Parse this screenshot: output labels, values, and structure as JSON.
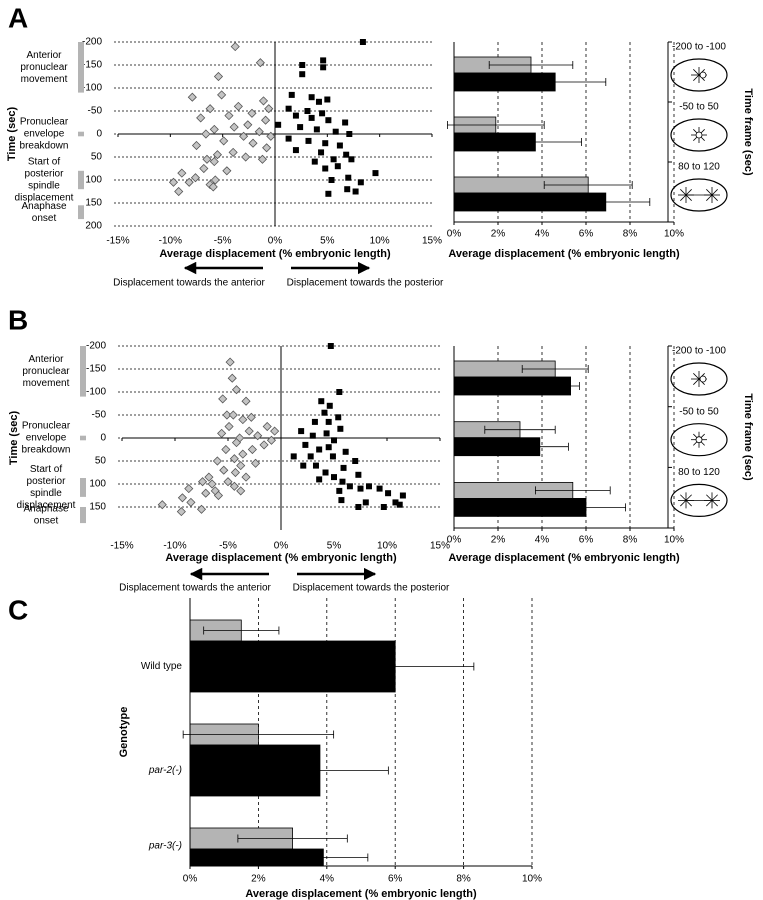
{
  "chart_data": [
    {
      "panel": "A",
      "type": "scatter",
      "xlabel": "Average displacement (% embryonic length)",
      "ylabel": "Time (sec)",
      "xlim": [
        -15,
        15
      ],
      "xticks": [
        {
          "value": -15,
          "label": "-15%"
        },
        {
          "value": -10,
          "label": "-10%"
        },
        {
          "value": -5,
          "label": "-5%"
        },
        {
          "value": 0,
          "label": "0%"
        },
        {
          "value": 5,
          "label": "5%"
        },
        {
          "value": 10,
          "label": "10%"
        },
        {
          "value": 15,
          "label": "15%"
        }
      ],
      "ylim": [
        -200,
        200
      ],
      "yticks": [
        -200,
        -150,
        -100,
        -50,
        0,
        50,
        100,
        150,
        200
      ],
      "grid": true,
      "series": [
        {
          "marker": "diamond",
          "color": "#c4c4c4",
          "x": [
            -3.8,
            -1.4,
            -5.4,
            -7.9,
            -5.1,
            -1.1,
            -3.5,
            -6.2,
            -0.6,
            -2.2,
            -4.4,
            -7.1,
            -0.9,
            -2.6,
            -3.9,
            -5.8,
            -1.5,
            -6.6,
            -3.0,
            -0.4,
            -4.9,
            -2.1,
            -7.5,
            -0.8,
            -4.0,
            -5.5,
            -2.8,
            -6.5,
            -5.8,
            -1.2,
            -6.8,
            -4.6,
            -8.9,
            -7.6,
            -5.7,
            -9.7,
            -8.2,
            -6.2,
            -9.2,
            -5.9
          ],
          "values": [
            -190,
            -155,
            -125,
            -80,
            -85,
            -72,
            -60,
            -55,
            -55,
            -45,
            -40,
            -35,
            -30,
            -20,
            -15,
            -10,
            -5,
            0,
            5,
            5,
            15,
            20,
            25,
            30,
            40,
            45,
            50,
            55,
            60,
            55,
            75,
            80,
            85,
            95,
            100,
            105,
            105,
            110,
            125,
            115
          ]
        },
        {
          "marker": "square",
          "color": "#000000",
          "x": [
            8.4,
            2.6,
            4.6,
            4.6,
            2.6,
            1.6,
            3.5,
            5.0,
            4.2,
            1.3,
            3.1,
            4.5,
            2.0,
            3.5,
            5.1,
            6.7,
            0.3,
            2.4,
            4.0,
            5.8,
            7.1,
            1.3,
            3.2,
            4.8,
            6.2,
            2.0,
            4.4,
            6.8,
            5.6,
            7.3,
            3.8,
            6.0,
            4.8,
            9.6,
            7.0,
            5.4,
            8.2,
            6.9,
            5.1,
            7.7
          ],
          "values": [
            -200,
            -150,
            -160,
            -145,
            -130,
            -85,
            -80,
            -75,
            -70,
            -55,
            -50,
            -45,
            -40,
            -35,
            -30,
            -25,
            -20,
            -15,
            -10,
            -5,
            0,
            10,
            15,
            20,
            25,
            35,
            40,
            45,
            55,
            55,
            60,
            70,
            75,
            85,
            95,
            100,
            105,
            120,
            130,
            125
          ]
        }
      ],
      "stages": [
        {
          "lines": [
            "Anterior",
            "pronuclear",
            "movement"
          ],
          "range": [
            -200,
            -90
          ]
        },
        {
          "lines": [
            "Pronuclear",
            "envelope",
            "breakdown"
          ],
          "range": [
            -5,
            5
          ]
        },
        {
          "lines": [
            "Start of",
            "posterior",
            "spindle",
            "displacement"
          ],
          "range": [
            80,
            120
          ]
        },
        {
          "lines": [
            "Anaphase",
            "onset"
          ],
          "range": [
            155,
            185
          ]
        }
      ],
      "arrows": [
        "Displacement towards the anterior",
        "Displacement towards the posterior"
      ]
    },
    {
      "type": "barh",
      "xlabel": "Average displacement (% embryonic length)",
      "ylabel": "Time frame (sec)",
      "categories": [
        "-200 to -100",
        "-50 to 50",
        "80 to 120"
      ],
      "xlim": [
        0,
        10
      ],
      "xticks": [
        {
          "value": 0,
          "label": "0%"
        },
        {
          "value": 2,
          "label": "2%"
        },
        {
          "value": 4,
          "label": "4%"
        },
        {
          "value": 6,
          "label": "6%"
        },
        {
          "value": 8,
          "label": "8%"
        },
        {
          "value": 10,
          "label": "10%"
        }
      ],
      "grid": true,
      "series": [
        {
          "color": "#b4b4b4",
          "values": [
            3.5,
            1.9,
            6.1
          ],
          "errors": [
            1.9,
            2.2,
            2.0
          ]
        },
        {
          "color": "#000000",
          "values": [
            4.6,
            3.7,
            6.9
          ],
          "errors": [
            2.3,
            2.1,
            2.0
          ]
        }
      ]
    },
    {
      "panel": "B",
      "type": "scatter",
      "xlabel": "Average displacement (% embryonic length)",
      "ylabel": "Time (sec)",
      "xlim": [
        -15,
        15
      ],
      "xticks": [
        {
          "value": -15,
          "label": "-15%"
        },
        {
          "value": -10,
          "label": "-10%"
        },
        {
          "value": -5,
          "label": "-5%"
        },
        {
          "value": 0,
          "label": "0%"
        },
        {
          "value": 5,
          "label": "5%"
        },
        {
          "value": 10,
          "label": "10%"
        },
        {
          "value": 15,
          "label": "15%"
        }
      ],
      "ylim": [
        -200,
        200
      ],
      "yticks": [
        -200,
        -150,
        -100,
        -50,
        0,
        50,
        100,
        150
      ],
      "grid": true,
      "series": [
        {
          "marker": "diamond",
          "color": "#c4c4c4",
          "x": [
            -4.8,
            -4.6,
            -4.2,
            -5.5,
            -3.3,
            -5.1,
            -4.5,
            -2.8,
            -3.6,
            -4.9,
            -1.3,
            -3.0,
            -5.6,
            -0.6,
            -2.2,
            -3.9,
            -0.9,
            -4.2,
            -1.6,
            -5.2,
            -2.7,
            -3.6,
            -4.4,
            -6.0,
            -2.4,
            -3.8,
            -5.4,
            -4.3,
            -6.8,
            -3.3,
            -7.4,
            -5.0,
            -6.5,
            -4.4,
            -8.7,
            -6.2,
            -3.8,
            -9.3,
            -7.1,
            -11.2,
            -8.5,
            -7.5,
            -9.4,
            -5.9
          ],
          "values": [
            -165,
            -130,
            -105,
            -85,
            -80,
            -50,
            -50,
            -45,
            -40,
            -25,
            -25,
            -15,
            -10,
            -15,
            -5,
            0,
            5,
            10,
            15,
            25,
            25,
            35,
            45,
            50,
            55,
            60,
            70,
            75,
            85,
            85,
            95,
            95,
            100,
            105,
            110,
            115,
            115,
            130,
            120,
            145,
            140,
            155,
            160,
            125
          ]
        },
        {
          "marker": "square",
          "color": "#000000",
          "x": [
            4.7,
            5.5,
            3.8,
            4.6,
            4.1,
            5.4,
            4.5,
            3.2,
            5.6,
            1.9,
            4.3,
            3.0,
            5.0,
            2.3,
            4.5,
            3.6,
            6.1,
            1.2,
            2.8,
            4.9,
            7.0,
            2.1,
            3.3,
            5.9,
            4.2,
            7.3,
            5.0,
            3.6,
            5.8,
            6.5,
            8.3,
            5.5,
            7.5,
            9.3,
            10.1,
            11.5,
            5.7,
            8.0,
            10.8,
            11.2,
            9.7,
            7.3
          ],
          "values": [
            -200,
            -100,
            -80,
            -70,
            -55,
            -45,
            -35,
            -35,
            -20,
            -15,
            -10,
            -5,
            5,
            15,
            20,
            25,
            30,
            40,
            40,
            40,
            50,
            60,
            60,
            65,
            75,
            80,
            85,
            90,
            95,
            105,
            105,
            115,
            110,
            110,
            120,
            125,
            135,
            140,
            140,
            145,
            150,
            150
          ]
        }
      ],
      "stages": [
        {
          "lines": [
            "Anterior",
            "pronuclear",
            "movement"
          ],
          "range": [
            -200,
            -90
          ]
        },
        {
          "lines": [
            "Pronuclear",
            "envelope",
            "breakdown"
          ],
          "range": [
            -5,
            5
          ]
        },
        {
          "lines": [
            "Start of",
            "posterior",
            "spindle",
            "displacement"
          ],
          "range": [
            87,
            128
          ]
        },
        {
          "lines": [
            "Anaphase",
            "onset"
          ],
          "range": [
            150,
            185
          ]
        }
      ],
      "arrows": [
        "Displacement towards the anterior",
        "Displacement towards the posterior"
      ]
    },
    {
      "type": "barh",
      "xlabel": "Average displacement (% embryonic length)",
      "ylabel": "Time frame (sec)",
      "categories": [
        "-200 to -100",
        "-50 to 50",
        "80 to 120"
      ],
      "xlim": [
        0,
        10
      ],
      "xticks": [
        {
          "value": 0,
          "label": "0%"
        },
        {
          "value": 2,
          "label": "2%"
        },
        {
          "value": 4,
          "label": "4%"
        },
        {
          "value": 6,
          "label": "6%"
        },
        {
          "value": 8,
          "label": "8%"
        },
        {
          "value": 10,
          "label": "10%"
        }
      ],
      "grid": true,
      "series": [
        {
          "color": "#b4b4b4",
          "values": [
            4.6,
            3.0,
            5.4
          ],
          "errors": [
            1.5,
            1.6,
            1.7
          ]
        },
        {
          "color": "#000000",
          "values": [
            5.3,
            3.9,
            6.0
          ],
          "errors": [
            0.4,
            1.3,
            1.8
          ]
        }
      ]
    },
    {
      "panel": "C",
      "type": "barh",
      "xlabel": "Average displacement (% embryonic length)",
      "ylabel": "Genotype",
      "categories": [
        "Wild type",
        "par-2(-)",
        "par-3(-)"
      ],
      "xlim": [
        0,
        10
      ],
      "xticks": [
        {
          "value": 0,
          "label": "0%"
        },
        {
          "value": 2,
          "label": "2%"
        },
        {
          "value": 4,
          "label": "4%"
        },
        {
          "value": 6,
          "label": "6%"
        },
        {
          "value": 8,
          "label": "8%"
        },
        {
          "value": 10,
          "label": "10%"
        }
      ],
      "grid": true,
      "series": [
        {
          "color": "#b4b4b4",
          "values": [
            1.5,
            2.0,
            3.0
          ],
          "errors": [
            1.1,
            2.2,
            1.6
          ]
        },
        {
          "color": "#000000",
          "values": [
            6.0,
            3.8,
            3.9
          ],
          "errors": [
            2.3,
            2.0,
            1.3
          ]
        }
      ]
    }
  ]
}
